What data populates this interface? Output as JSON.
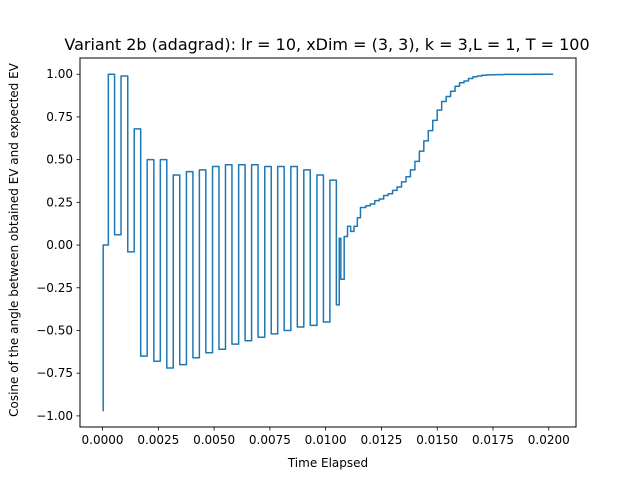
{
  "chart_data": {
    "type": "line",
    "title": "Variant 2b (adagrad): lr = 10, xDim = (3, 3), k = 3,L = 1, T = 100",
    "xlabel": "Time Elapsed",
    "ylabel": "Cosine of the angle between obtained EV and expected EV",
    "xlim": [
      -0.00101,
      0.02122
    ],
    "ylim": [
      -1.065,
      1.095
    ],
    "x_ticks": [
      0.0,
      0.0025,
      0.005,
      0.0075,
      0.01,
      0.0125,
      0.015,
      0.0175,
      0.02
    ],
    "x_tick_labels": [
      "0.0000",
      "0.0025",
      "0.0050",
      "0.0075",
      "0.0100",
      "0.0125",
      "0.0150",
      "0.0175",
      "0.0200"
    ],
    "y_ticks": [
      -1.0,
      -0.75,
      -0.5,
      -0.25,
      0.0,
      0.25,
      0.5,
      0.75,
      1.0
    ],
    "y_tick_labels": [
      "−1.00",
      "−0.75",
      "−0.50",
      "−0.25",
      "0.00",
      "0.25",
      "0.50",
      "0.75",
      "1.00"
    ],
    "grid": false,
    "legend": "none",
    "series": [
      {
        "color": "#1f77b4",
        "style": "step",
        "x": [
          0.0,
          3e-05,
          0.00026,
          0.00054,
          0.00083,
          0.00113,
          0.00142,
          0.00171,
          0.002,
          0.0023,
          0.00259,
          0.00288,
          0.00317,
          0.00346,
          0.00376,
          0.00405,
          0.00434,
          0.00463,
          0.00493,
          0.00522,
          0.00551,
          0.0058,
          0.0061,
          0.00639,
          0.00668,
          0.00697,
          0.00727,
          0.00756,
          0.00785,
          0.00814,
          0.00844,
          0.00873,
          0.00902,
          0.00931,
          0.00961,
          0.0099,
          0.01019,
          0.01048,
          0.01061,
          0.01068,
          0.01083,
          0.01098,
          0.01112,
          0.01127,
          0.01142,
          0.01156,
          0.0118,
          0.012,
          0.0122,
          0.0124,
          0.0126,
          0.0128,
          0.013,
          0.0132,
          0.0134,
          0.0136,
          0.0138,
          0.014,
          0.0142,
          0.0144,
          0.0146,
          0.0148,
          0.015,
          0.0152,
          0.0154,
          0.0156,
          0.0158,
          0.016,
          0.0162,
          0.0164,
          0.0166,
          0.0168,
          0.017,
          0.0172,
          0.0174,
          0.0176,
          0.0178,
          0.018,
          0.0184,
          0.0188,
          0.0192,
          0.0196,
          0.0202
        ],
        "y": [
          -0.97,
          0.0,
          1.0,
          0.06,
          0.99,
          -0.04,
          0.68,
          -0.65,
          0.5,
          -0.68,
          0.5,
          -0.72,
          0.41,
          -0.7,
          0.43,
          -0.66,
          0.44,
          -0.63,
          0.46,
          -0.61,
          0.47,
          -0.58,
          0.47,
          -0.56,
          0.47,
          -0.54,
          0.46,
          -0.52,
          0.46,
          -0.5,
          0.46,
          -0.48,
          0.44,
          -0.47,
          0.41,
          -0.45,
          0.38,
          -0.35,
          0.04,
          -0.2,
          0.05,
          0.11,
          0.08,
          0.11,
          0.16,
          0.22,
          0.23,
          0.24,
          0.26,
          0.27,
          0.29,
          0.3,
          0.32,
          0.34,
          0.37,
          0.4,
          0.44,
          0.49,
          0.55,
          0.61,
          0.67,
          0.73,
          0.79,
          0.84,
          0.87,
          0.9,
          0.93,
          0.95,
          0.96,
          0.975,
          0.985,
          0.99,
          0.994,
          0.996,
          0.997,
          0.998,
          0.998,
          0.999,
          0.999,
          0.999,
          1.0,
          1.0,
          1.0
        ]
      }
    ]
  }
}
